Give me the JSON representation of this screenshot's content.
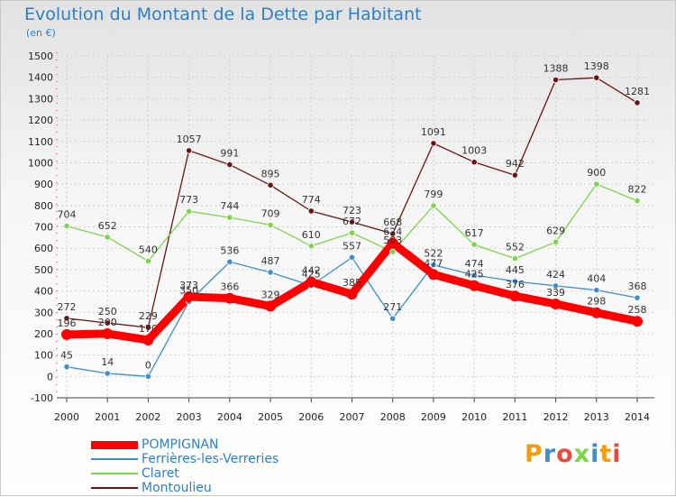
{
  "title": "Evolution du Montant de la Dette par Habitant",
  "subtitle": "(en €)",
  "logo": "Proxiti",
  "chart_data": {
    "type": "line",
    "title": "Evolution du Montant de la Dette par Habitant",
    "ylabel": "(en €)",
    "x": [
      "2000",
      "2001",
      "2002",
      "2003",
      "2004",
      "2005",
      "2006",
      "2007",
      "2008",
      "2009",
      "2010",
      "2011",
      "2012",
      "2013",
      "2014"
    ],
    "ylim": [
      -100,
      1500
    ],
    "yticks": [
      "-100",
      "0",
      "100",
      "200",
      "300",
      "400",
      "500",
      "600",
      "700",
      "800",
      "900",
      "1000",
      "1100",
      "1200",
      "1300",
      "1400",
      "1500"
    ],
    "grid": true,
    "legend_position": "bottom",
    "series": [
      {
        "name": "POMPIGNAN",
        "color": "#ff0000",
        "values": [
          196,
          200,
          170,
          373,
          366,
          329,
          442,
          385,
          624,
          477,
          425,
          376,
          339,
          298,
          258
        ],
        "labels": [
          "196",
          "200",
          "170",
          "373",
          "366",
          "329",
          "442",
          "385",
          "624",
          "477",
          "425",
          "376",
          "339",
          "298",
          "258"
        ]
      },
      {
        "name": "Ferrières-les-Verreries",
        "color": "#3d8ecb",
        "values": [
          45,
          14,
          0,
          350,
          536,
          487,
          425,
          557,
          271,
          522,
          474,
          445,
          424,
          404,
          368
        ],
        "labels": [
          "45",
          "14",
          "0",
          "350",
          "536",
          "487",
          "425",
          "557",
          "271",
          "522",
          "474",
          "445",
          "424",
          "404",
          "368"
        ]
      },
      {
        "name": "Claret",
        "color": "#7fd44c",
        "values": [
          704,
          652,
          540,
          773,
          744,
          709,
          610,
          672,
          583,
          799,
          617,
          552,
          629,
          900,
          822
        ],
        "labels": [
          "704",
          "652",
          "540",
          "773",
          "744",
          "709",
          "610",
          "672",
          "583",
          "799",
          "617",
          "552",
          "629",
          "900",
          "822"
        ]
      },
      {
        "name": "Montoulieu",
        "color": "#6b1414",
        "values": [
          272,
          250,
          229,
          1057,
          991,
          895,
          774,
          723,
          668,
          1091,
          1003,
          942,
          1388,
          1398,
          1281
        ],
        "labels": [
          "272",
          "250",
          "229",
          "1057",
          "991",
          "895",
          "774",
          "723",
          "668",
          "1091",
          "1003",
          "942",
          "1388",
          "1398",
          "1281"
        ]
      }
    ]
  }
}
